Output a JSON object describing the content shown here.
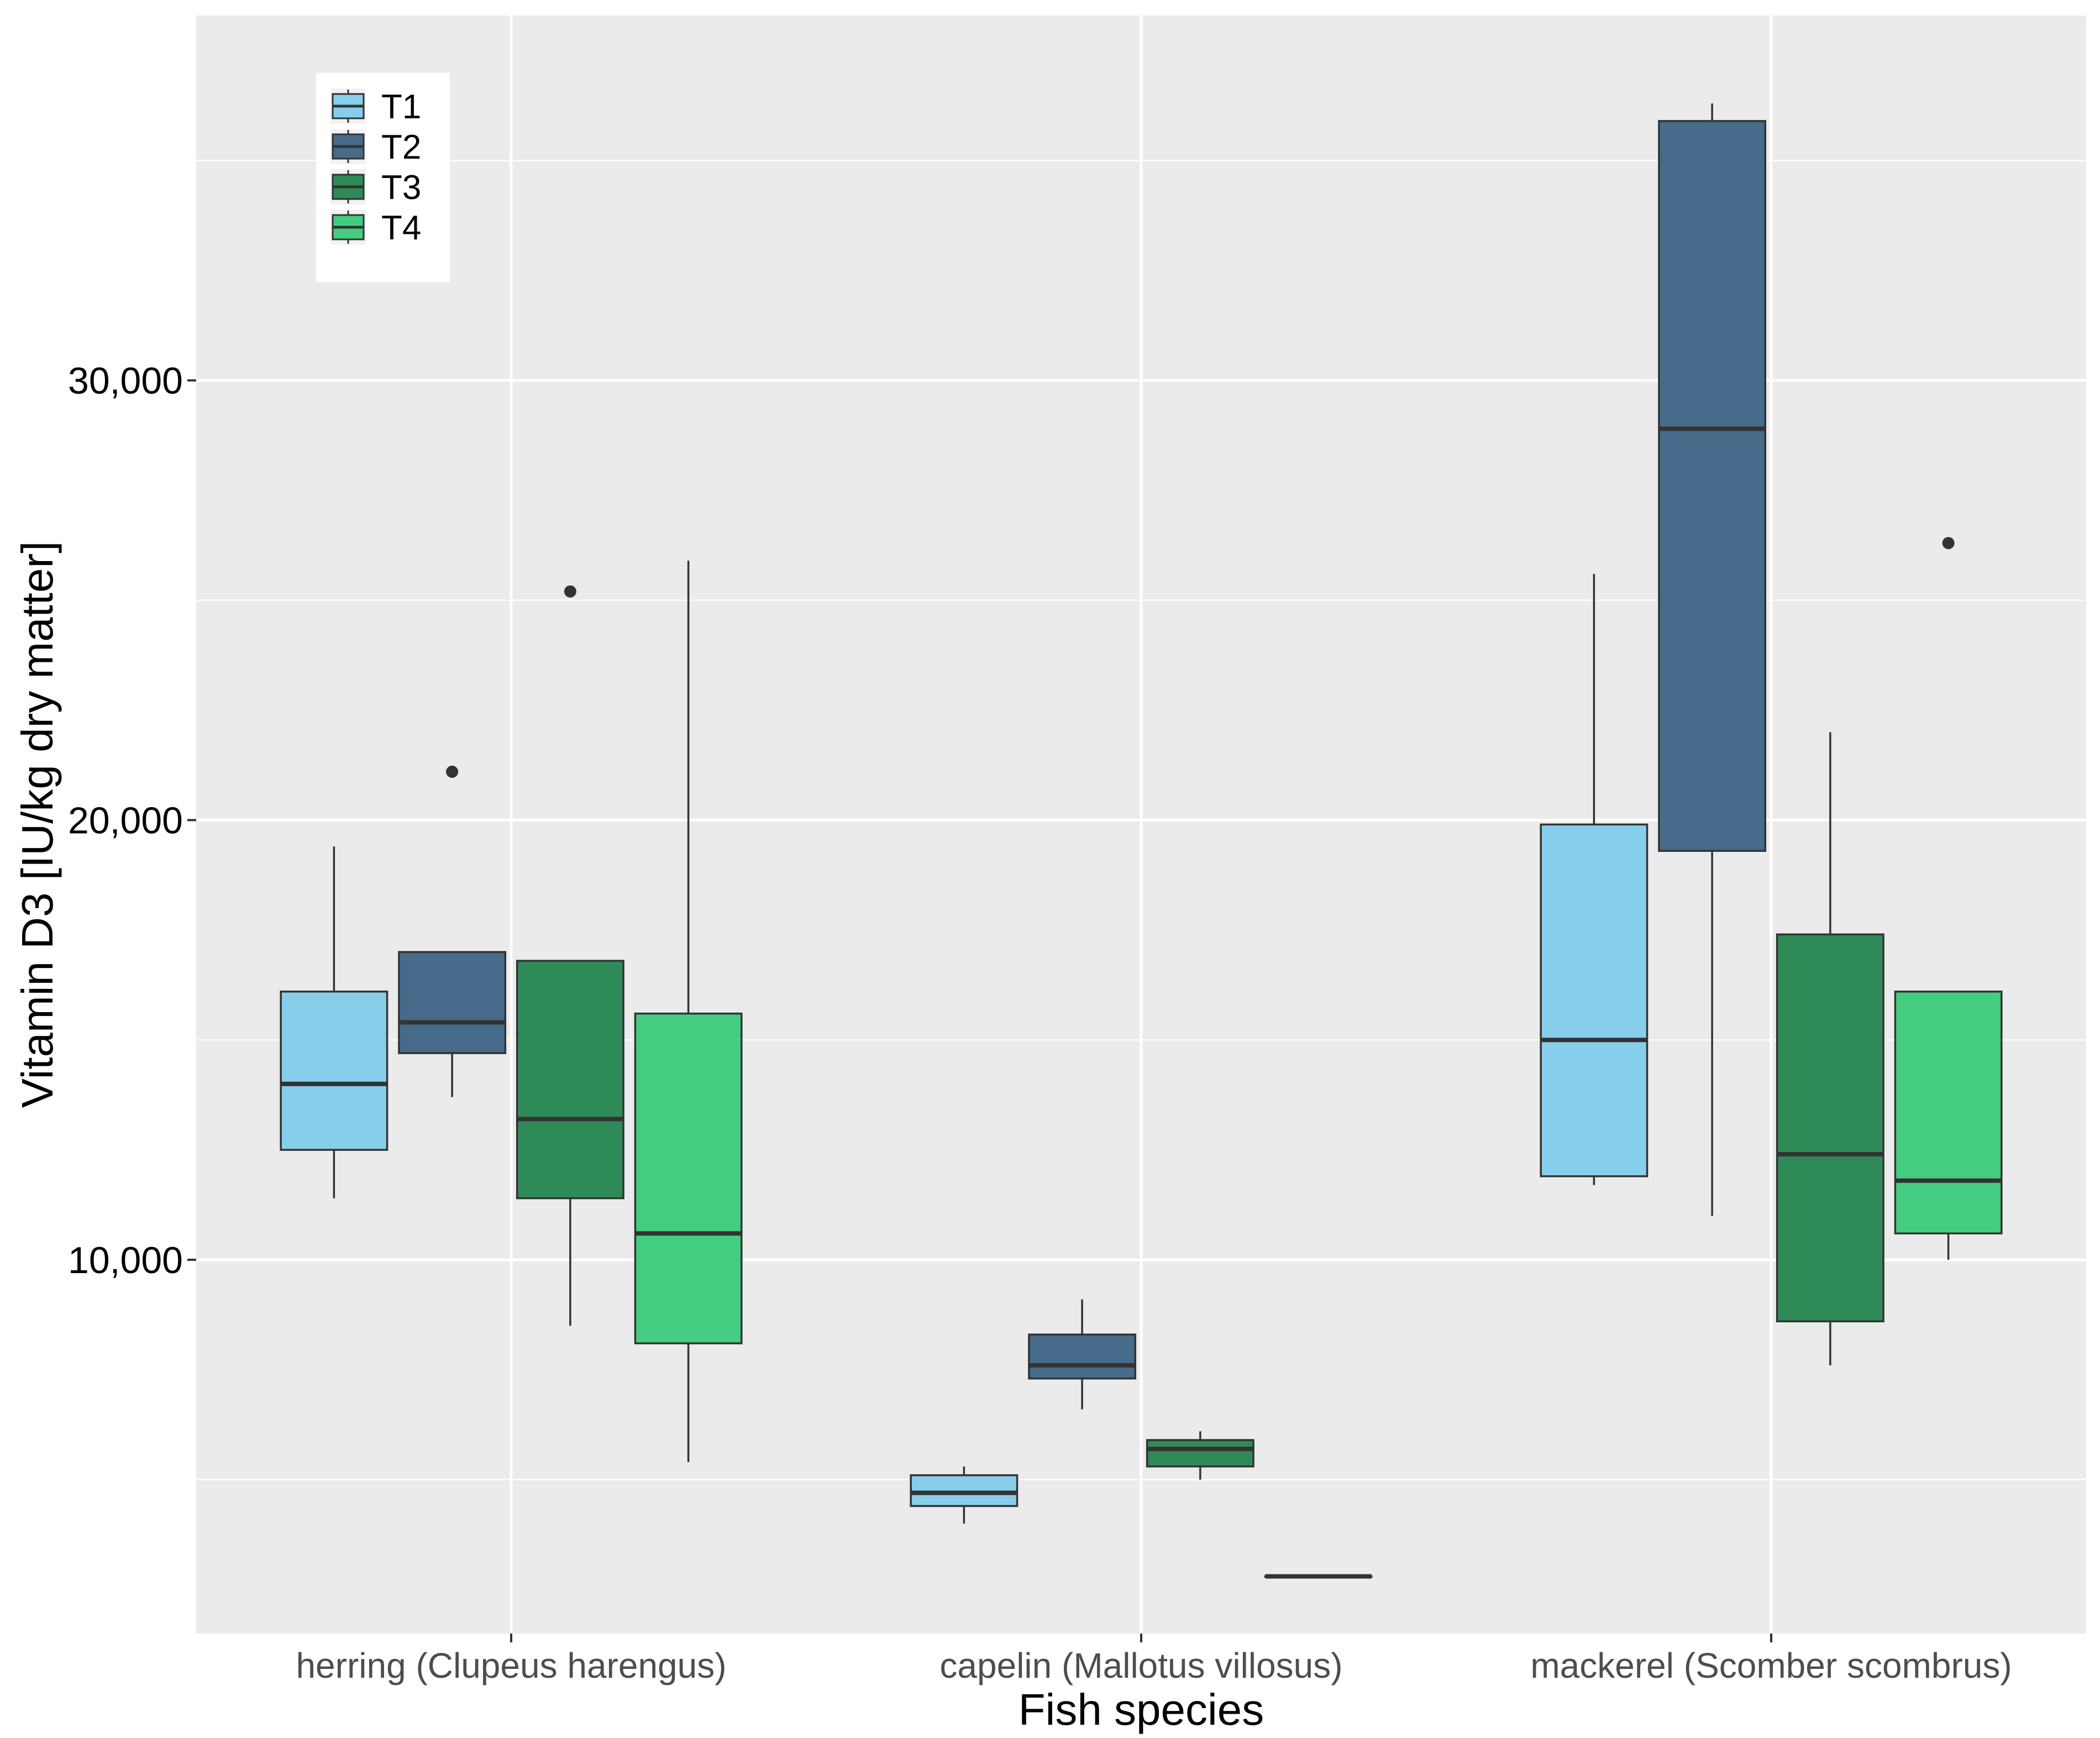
{
  "chart_data": {
    "type": "boxplot",
    "title": "",
    "xlabel": "Fish species",
    "ylabel": "Vitamin D3 [IU/kg dry matter]",
    "ylim": [
      1500,
      38300
    ],
    "yticks": [
      10000,
      20000,
      30000
    ],
    "ytick_labels": [
      "10,000",
      "20,000",
      "30,000"
    ],
    "grid": true,
    "legend": {
      "position": "top-left",
      "entries": [
        "T1",
        "T2",
        "T3",
        "T4"
      ]
    },
    "categories": [
      "herring (Clupeus harengus)",
      "capelin (Mallotus villosus)",
      "mackerel (Scomber scombrus)"
    ],
    "series": [
      {
        "name": "T1",
        "color": "#87ceeb",
        "boxes": [
          {
            "min": 11400,
            "q1": 12500,
            "median": 14000,
            "q3": 16100,
            "max": 19400,
            "outliers": []
          },
          {
            "min": 4000,
            "q1": 4400,
            "median": 4700,
            "q3": 5100,
            "max": 5300,
            "outliers": []
          },
          {
            "min": 11700,
            "q1": 11900,
            "median": 15000,
            "q3": 19900,
            "max": 25600,
            "outliers": []
          }
        ]
      },
      {
        "name": "T2",
        "color": "#476b8a",
        "boxes": [
          {
            "min": 13700,
            "q1": 14700,
            "median": 15400,
            "q3": 17000,
            "max": 17000,
            "outliers": [
              21100
            ]
          },
          {
            "min": 6600,
            "q1": 7300,
            "median": 7600,
            "q3": 8300,
            "max": 9100,
            "outliers": []
          },
          {
            "min": 11000,
            "q1": 19300,
            "median": 28900,
            "q3": 35900,
            "max": 36300,
            "outliers": []
          }
        ]
      },
      {
        "name": "T3",
        "color": "#2e8b57",
        "boxes": [
          {
            "min": 8500,
            "q1": 11400,
            "median": 13200,
            "q3": 16800,
            "max": 16800,
            "outliers": [
              25200
            ]
          },
          {
            "min": 5000,
            "q1": 5300,
            "median": 5700,
            "q3": 5900,
            "max": 6100,
            "outliers": []
          },
          {
            "min": 7600,
            "q1": 8600,
            "median": 12400,
            "q3": 17400,
            "max": 22000,
            "outliers": []
          }
        ]
      },
      {
        "name": "T4",
        "color": "#43cd80",
        "boxes": [
          {
            "min": 5400,
            "q1": 8100,
            "median": 10600,
            "q3": 15600,
            "max": 25900,
            "outliers": []
          },
          {
            "min": 2800,
            "q1": 2800,
            "median": 2800,
            "q3": 2800,
            "max": 2800,
            "outliers": []
          },
          {
            "min": 10000,
            "q1": 10600,
            "median": 11800,
            "q3": 16100,
            "max": 16100,
            "outliers": [
              26300
            ]
          }
        ]
      }
    ]
  }
}
